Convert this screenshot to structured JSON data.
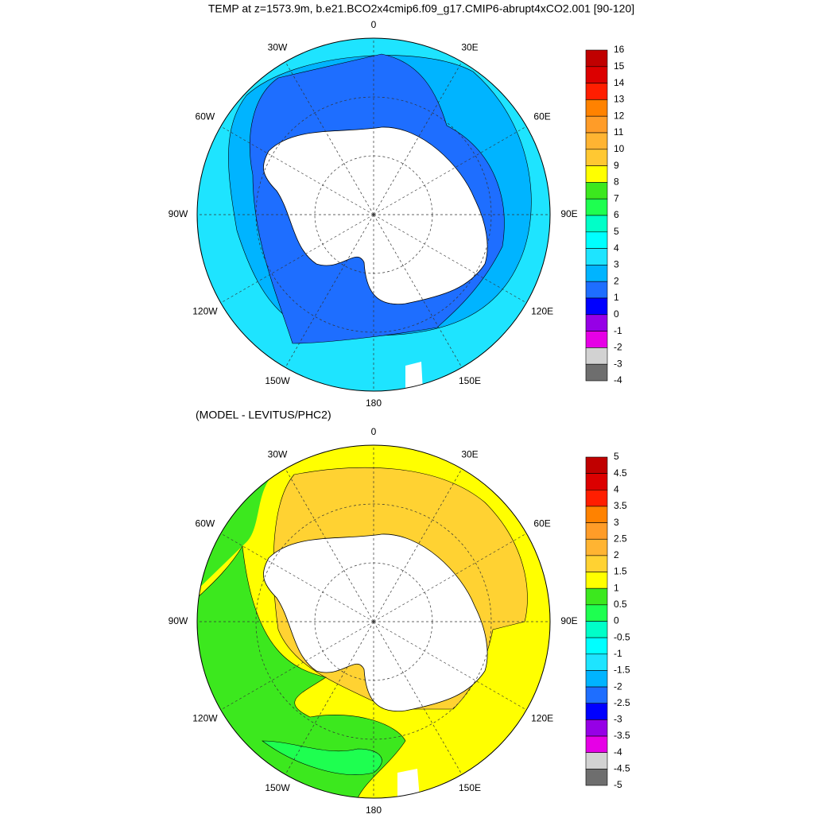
{
  "title": "TEMP at z=1573.9m, b.e21.BCO2x4cmip6.f09_g17.CMIP6-abrupt4xCO2.001 [90-120]",
  "maps": [
    {
      "subtitle": null,
      "lon_labels": [
        "0",
        "30E",
        "60E",
        "90E",
        "120E",
        "150E",
        "180",
        "150W",
        "120W",
        "90W",
        "60W",
        "30W"
      ],
      "colorbar": {
        "labels": [
          16,
          15,
          14,
          13,
          12,
          11,
          10,
          9,
          8,
          7,
          6,
          5,
          4,
          3,
          2,
          1,
          0,
          -1,
          -2,
          -3,
          -4
        ],
        "colors": [
          "#c00000",
          "#dc0000",
          "#ff1e00",
          "#ff8200",
          "#ff9c28",
          "#ffb432",
          "#ffc832",
          "#ffff00",
          "#3ce81e",
          "#1eff50",
          "#00ffc8",
          "#00ffff",
          "#1ee4ff",
          "#00b4ff",
          "#1e6eff",
          "#0000ff",
          "#9600e6",
          "#e600e6",
          "#d2d2d2",
          "#6e6e6e"
        ]
      }
    },
    {
      "subtitle": "(MODEL - LEVITUS/PHC2)",
      "lon_labels": [
        "0",
        "30E",
        "60E",
        "90E",
        "120E",
        "150E",
        "180",
        "150W",
        "120W",
        "90W",
        "60W",
        "30W"
      ],
      "colorbar": {
        "labels": [
          5,
          4.5,
          4,
          3.5,
          3,
          2.5,
          2,
          1.5,
          1,
          0.5,
          0,
          -0.5,
          -1,
          -1.5,
          -2,
          -2.5,
          -3,
          -3.5,
          -4,
          -4.5,
          -5
        ],
        "colors": [
          "#c00000",
          "#dc0000",
          "#ff1e00",
          "#ff8200",
          "#ff9c28",
          "#ffb432",
          "#ffd232",
          "#ffff00",
          "#3ce81e",
          "#1eff50",
          "#00ffc8",
          "#00ffff",
          "#1ee4ff",
          "#00b4ff",
          "#1e6eff",
          "#0000ff",
          "#9600e6",
          "#e600e6",
          "#d2d2d2",
          "#6e6e6e"
        ]
      }
    }
  ]
}
